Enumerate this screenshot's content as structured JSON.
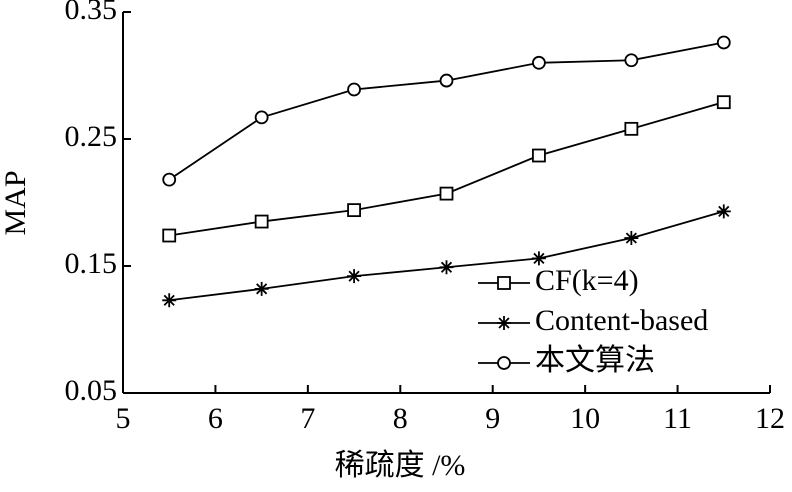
{
  "chart_data": {
    "type": "line",
    "x_label": "稀疏度 /%",
    "y_label": "MAP",
    "x": [
      5.5,
      6.5,
      7.5,
      8.5,
      9.5,
      10.5,
      11.5
    ],
    "series": [
      {
        "name": "CF(k=4)",
        "color": "#000000",
        "marker": "square",
        "values": [
          0.174,
          0.185,
          0.194,
          0.207,
          0.237,
          0.258,
          0.279
        ]
      },
      {
        "name": "Content-based",
        "color": "#000000",
        "marker": "asterisk",
        "values": [
          0.123,
          0.132,
          0.142,
          0.149,
          0.156,
          0.172,
          0.193
        ]
      },
      {
        "name": "本文算法",
        "color": "#000000",
        "marker": "circle",
        "values": [
          0.218,
          0.267,
          0.289,
          0.296,
          0.31,
          0.312,
          0.326
        ]
      }
    ],
    "xlim": [
      5,
      12
    ],
    "xticks": [
      5,
      6,
      7,
      8,
      9,
      10,
      11,
      12
    ],
    "ylim": [
      0.05,
      0.35
    ],
    "yticks": [
      0.05,
      0.15,
      0.25,
      0.35
    ],
    "grid": false,
    "legend": "lower right"
  }
}
